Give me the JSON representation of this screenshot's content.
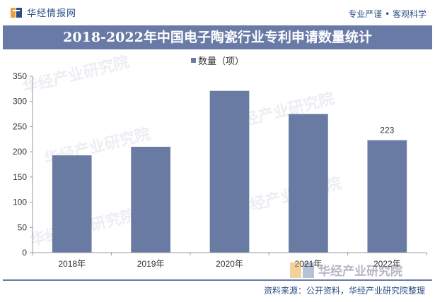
{
  "header": {
    "brand_name": "华经情报网",
    "tagline": "专业严谨 • 客观科学"
  },
  "chart_data": {
    "type": "bar",
    "title": "2018-2022年中国电子陶瓷行业专利申请数量统计",
    "legend": [
      "数量（项）"
    ],
    "categories": [
      "2018年",
      "2019年",
      "2020年",
      "2021年",
      "2022年"
    ],
    "series": [
      {
        "name": "数量（项）",
        "values": [
          193,
          210,
          321,
          275,
          223
        ],
        "color": "#6a7ba3"
      }
    ],
    "data_labels": {
      "2022年": "223"
    },
    "ylim": [
      0,
      350
    ],
    "yticks": [
      0,
      50,
      100,
      150,
      200,
      250,
      300,
      350
    ],
    "grid": false
  },
  "footer": {
    "source": "资料来源：公开资料，华经产业研究院整理"
  },
  "watermark": {
    "text": "华经产业研究院",
    "url": "www.huaon.com",
    "stamp_text": "华经产业研究院"
  },
  "colors": {
    "accent": "#2c4f86",
    "title_band": "#697aa6",
    "bar": "#6a7ba3"
  }
}
